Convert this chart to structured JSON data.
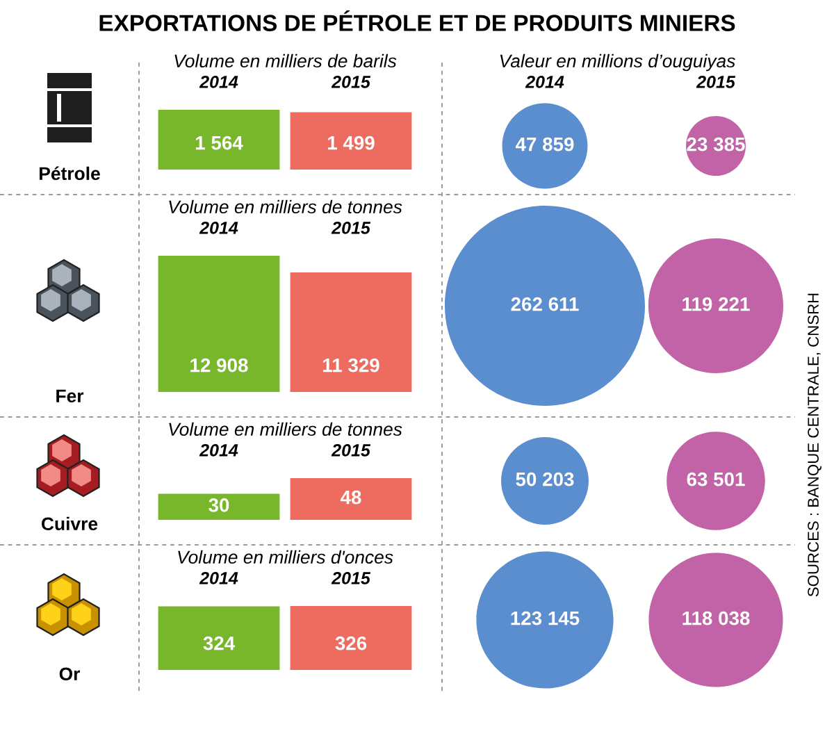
{
  "chart_data": [
    {
      "type": "bar",
      "title": "EXPORTATIONS DE PÉTROLE ET DE PRODUITS MINIERS",
      "subtitle": "Volume en milliers de barils",
      "ylabel": "Pétrole",
      "categories": [
        "2014",
        "2015"
      ],
      "values": [
        1564,
        1499
      ],
      "value_labels": [
        "1 564",
        "1 499"
      ],
      "colors": [
        "#78b62c",
        "#ee6b60"
      ]
    },
    {
      "type": "other",
      "subtitle": "Valeur en millions d’ouguiyas",
      "categories": [
        "2014",
        "2015"
      ],
      "values": [
        47859,
        23385
      ],
      "value_labels": [
        "47 859",
        "23 385"
      ],
      "colors": [
        "#5b8ecf",
        "#c263a8"
      ]
    },
    {
      "type": "bar",
      "subtitle": "Volume en milliers de tonnes",
      "ylabel": "Fer",
      "categories": [
        "2014",
        "2015"
      ],
      "values": [
        12908,
        11329
      ],
      "value_labels": [
        "12 908",
        "11 329"
      ],
      "colors": [
        "#78b62c",
        "#ee6b60"
      ]
    },
    {
      "type": "other",
      "categories": [
        null,
        null
      ],
      "values": [
        262611,
        119221
      ],
      "value_labels": [
        "262 611",
        "119 221"
      ],
      "colors": [
        "#5b8ecf",
        "#c263a8"
      ]
    },
    {
      "type": "bar",
      "subtitle": "Volume en milliers de tonnes",
      "ylabel": "Cuivre",
      "categories": [
        "2014",
        "2015"
      ],
      "values": [
        30,
        48
      ],
      "value_labels": [
        "30",
        "48"
      ],
      "colors": [
        "#78b62c",
        "#ee6b60"
      ]
    },
    {
      "type": "other",
      "categories": [
        null,
        null
      ],
      "values": [
        50203,
        63501
      ],
      "value_labels": [
        "50 203",
        "63 501"
      ],
      "colors": [
        "#5b8ecf",
        "#c263a8"
      ]
    },
    {
      "type": "bar",
      "subtitle": "Volume en milliers d'onces",
      "ylabel": "Or",
      "categories": [
        "2014",
        "2015"
      ],
      "values": [
        324,
        326
      ],
      "value_labels": [
        "324",
        "326"
      ],
      "colors": [
        "#78b62c",
        "#ee6b60"
      ]
    },
    {
      "type": "other",
      "categories": [
        null,
        null
      ],
      "values": [
        123145,
        118038
      ],
      "value_labels": [
        "123 145",
        "118 038"
      ],
      "colors": [
        "#5b8ecf",
        "#c263a8"
      ],
      "annotations": [
        "SOURCES : BANQUE CENTRALE, CNSRH"
      ]
    }
  ]
}
